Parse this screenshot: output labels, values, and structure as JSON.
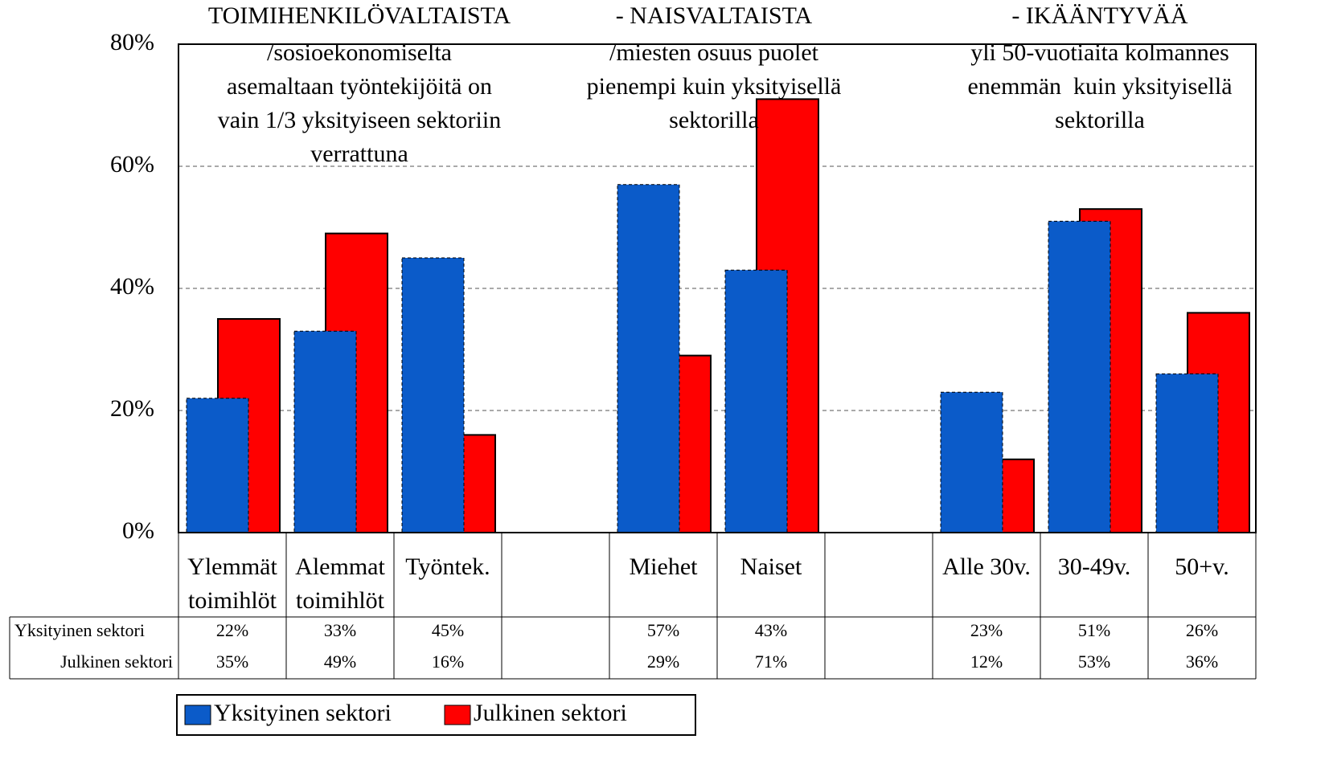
{
  "chart_data": {
    "type": "bar",
    "categories": [
      "Ylemmät toimihlöt",
      "Alemmat toimihlöt",
      "Työntek.",
      null,
      "Miehet",
      "Naiset",
      null,
      "Alle 30v.",
      "30-49v.",
      "50+v."
    ],
    "series": [
      {
        "name": "Yksityinen sektori",
        "color": "#0b5bc9",
        "values": [
          22,
          33,
          45,
          null,
          57,
          43,
          null,
          23,
          51,
          26
        ],
        "value_labels": [
          "22%",
          "33%",
          "45%",
          null,
          "57%",
          "43%",
          null,
          "23%",
          "51%",
          "26%"
        ]
      },
      {
        "name": "Julkinen sektori",
        "color": "#ff0000",
        "values": [
          35,
          49,
          16,
          null,
          29,
          71,
          null,
          12,
          53,
          36
        ],
        "value_labels": [
          "35%",
          "49%",
          "16%",
          null,
          "29%",
          "71%",
          null,
          "12%",
          "53%",
          "36%"
        ]
      }
    ],
    "ylim": [
      0,
      80
    ],
    "yticks": [
      {
        "value": 0,
        "label": "0%"
      },
      {
        "value": 20,
        "label": "20%"
      },
      {
        "value": 40,
        "label": "40%"
      },
      {
        "value": 60,
        "label": "60%"
      },
      {
        "value": 80,
        "label": "80%"
      }
    ],
    "grid": true,
    "annotations": [
      [
        "TOIMIHENKILÖVALTAISTA",
        "/sosioekonomiselta",
        "asemaltaan työntekijöitä on",
        "vain 1/3 yksityiseen sektoriin",
        "verrattuna"
      ],
      [
        "- NAISVALTAISTA",
        "/miesten osuus puolet",
        "pienempi kuin yksityisellä",
        "sektorilla"
      ],
      [
        "- IKÄÄNTYVÄÄ",
        "yli 50-vuotiaita kolmannes",
        "enemmän  kuin yksityisellä",
        "sektorilla"
      ]
    ]
  }
}
